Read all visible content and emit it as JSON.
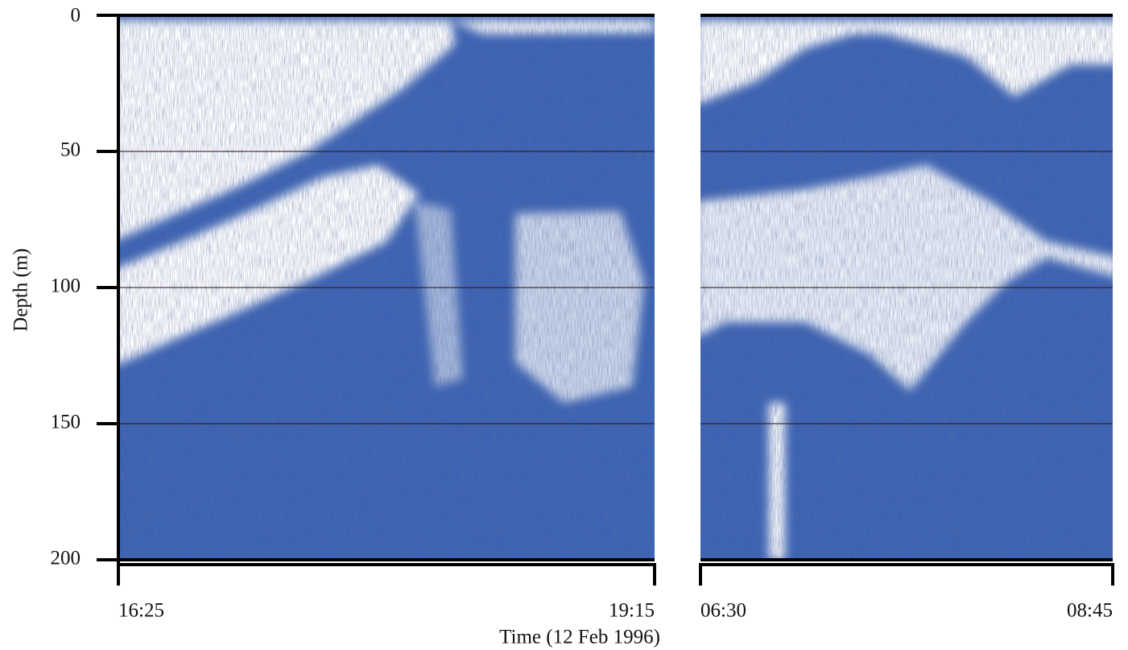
{
  "chart_data": {
    "type": "echogram",
    "ylabel": "Depth (m)",
    "xlabel": "Time (12 Feb 1996)",
    "ylim": [
      0,
      200
    ],
    "y_inverted": true,
    "yticks": [
      0,
      50,
      100,
      150,
      200
    ],
    "grid": true,
    "colors": {
      "scatter": "#3b63b4",
      "clear": "#ffffff"
    },
    "panels": [
      {
        "start": "16:25",
        "end": "19:15"
      },
      {
        "start": "06:30",
        "end": "08:45"
      }
    ]
  }
}
